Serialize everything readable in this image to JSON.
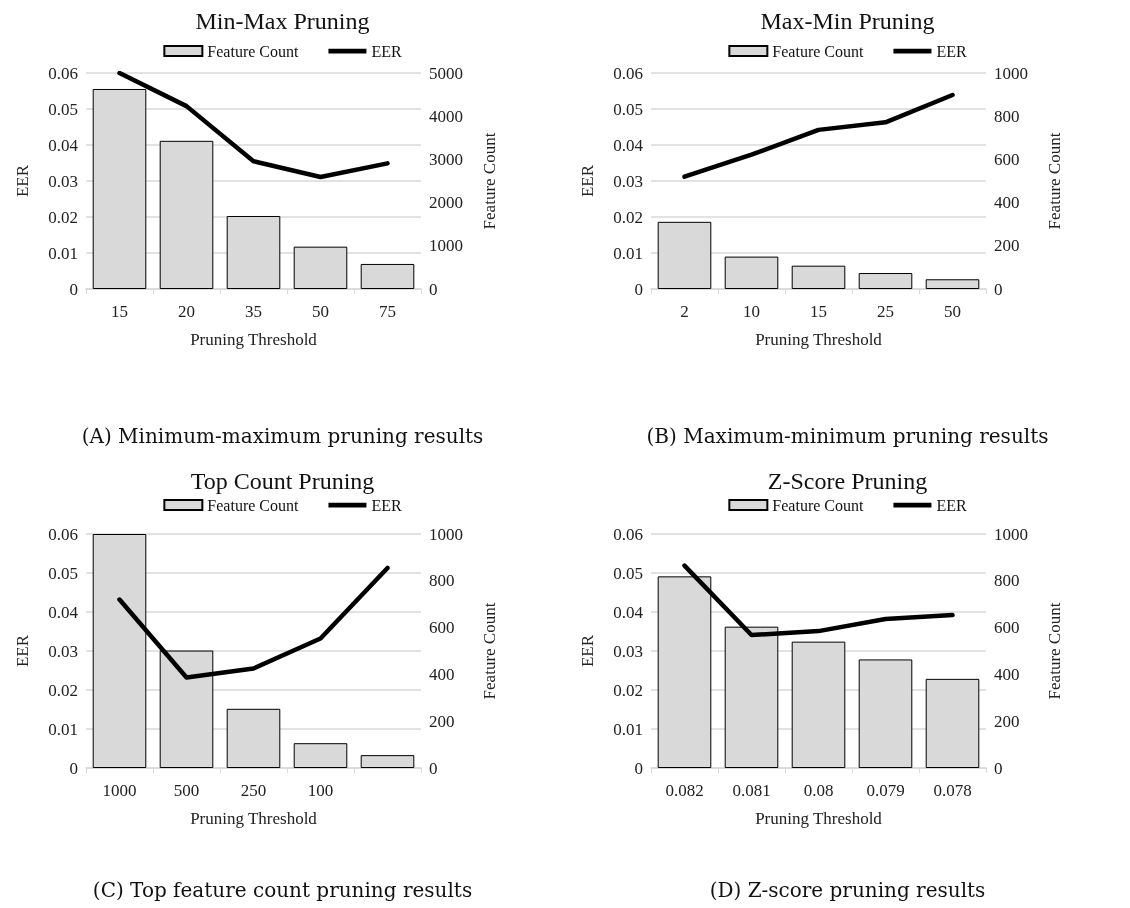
{
  "chart_data": [
    {
      "type": "bar",
      "title": "Min-Max Pruning",
      "xlabel": "Pruning Threshold",
      "ylabel": "EER",
      "y2label": "Feature Count",
      "categories": [
        "15",
        "20",
        "35",
        "50",
        "75"
      ],
      "series": [
        {
          "name": "Feature Count",
          "axis": "y2",
          "color": "#d9d9d9",
          "values": [
            4630,
            3430,
            1690,
            980,
            580
          ]
        },
        {
          "name": "EER",
          "type": "line",
          "color": "#000000",
          "values": [
            0.06,
            0.0508,
            0.0355,
            0.0311,
            0.0349
          ]
        }
      ],
      "ylim": [
        0,
        0.06
      ],
      "yticks": [
        0,
        0.01,
        0.02,
        0.03,
        0.04,
        0.05,
        0.06
      ],
      "y2lim": [
        0,
        5000
      ],
      "y2ticks": [
        0,
        1000,
        2000,
        3000,
        4000,
        5000
      ],
      "grid": "y",
      "legend": "top",
      "marker": "none",
      "line_style": "solid",
      "annotations": [
        "(A) Minimum-maximum pruning results"
      ]
    },
    {
      "type": "bar",
      "title": "Max-Min Pruning",
      "xlabel": "Pruning Threshold",
      "ylabel": "EER",
      "y2label": "Feature Count",
      "categories": [
        "2",
        "10",
        "15",
        "25",
        "50"
      ],
      "series": [
        {
          "name": "Feature Count",
          "axis": "y2",
          "color": "#d9d9d9",
          "values": [
            311,
            150,
            108,
            74,
            45
          ]
        },
        {
          "name": "EER",
          "type": "line",
          "color": "#000000",
          "values": [
            0.0312,
            0.0373,
            0.0442,
            0.0463,
            0.0539
          ]
        }
      ],
      "ylim": [
        0,
        0.06
      ],
      "yticks": [
        0,
        0.01,
        0.02,
        0.03,
        0.04,
        0.05,
        0.06
      ],
      "y2lim": [
        0,
        1000
      ],
      "y2ticks": [
        0,
        200,
        400,
        600,
        800,
        1000
      ],
      "grid": "y",
      "legend": "top",
      "marker": "none",
      "line_style": "solid",
      "annotations": [
        "(B) Maximum-minimum pruning results"
      ]
    },
    {
      "type": "bar",
      "title": "Top Count Pruning",
      "xlabel": "Pruning Threshold",
      "ylabel": "EER",
      "y2label": "Feature Count",
      "categories": [
        "1000",
        "500",
        "250",
        "100",
        null
      ],
      "series": [
        {
          "name": "Feature Count",
          "axis": "y2",
          "color": "#d9d9d9",
          "values": [
            1000,
            502,
            253,
            106,
            55
          ]
        },
        {
          "name": "EER",
          "type": "line",
          "color": "#000000",
          "values": [
            0.0432,
            0.0232,
            0.0255,
            0.0332,
            0.0513
          ]
        }
      ],
      "ylim": [
        0,
        0.06
      ],
      "yticks": [
        0,
        0.01,
        0.02,
        0.03,
        0.04,
        0.05,
        0.06
      ],
      "y2lim": [
        0,
        1000
      ],
      "y2ticks": [
        0,
        200,
        400,
        600,
        800,
        1000
      ],
      "grid": "y",
      "legend": "top",
      "marker": "none",
      "line_style": "solid",
      "annotations": [
        "(C) Top feature count pruning results"
      ]
    },
    {
      "type": "bar",
      "title": "Z-Score Pruning",
      "xlabel": "Pruning Threshold",
      "ylabel": "EER",
      "y2label": "Feature Count",
      "categories": [
        "0.082",
        "0.081",
        "0.08",
        "0.079",
        "0.078"
      ],
      "series": [
        {
          "name": "Feature Count",
          "axis": "y2",
          "color": "#d9d9d9",
          "values": [
            819,
            604,
            540,
            464,
            381
          ]
        },
        {
          "name": "EER",
          "type": "line",
          "color": "#000000",
          "values": [
            0.0519,
            0.0341,
            0.0351,
            0.0382,
            0.0392
          ]
        }
      ],
      "ylim": [
        0,
        0.06
      ],
      "yticks": [
        0,
        0.01,
        0.02,
        0.03,
        0.04,
        0.05,
        0.06
      ],
      "y2lim": [
        0,
        1000
      ],
      "y2ticks": [
        0,
        200,
        400,
        600,
        800,
        1000
      ],
      "grid": "y",
      "legend": "top",
      "marker": "none",
      "line_style": "solid",
      "annotations": [
        "(D) Z-score pruning results"
      ]
    }
  ]
}
